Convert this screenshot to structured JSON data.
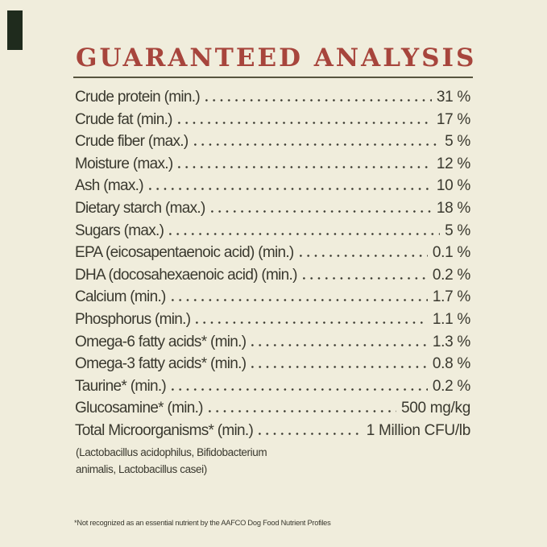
{
  "colors": {
    "background": "#f0eddc",
    "title": "#a7453c",
    "rule": "#57553e",
    "text": "#3a392f",
    "corner_mark": "#1f2b1d"
  },
  "header": {
    "title": "GUARANTEED ANALYSIS"
  },
  "analysis": {
    "rows": [
      {
        "label": "Crude protein (min.)",
        "value": "31 %"
      },
      {
        "label": "Crude fat (min.)",
        "value": "17 %"
      },
      {
        "label": "Crude fiber (max.)",
        "value": "5 %"
      },
      {
        "label": "Moisture (max.)",
        "value": "12 %"
      },
      {
        "label": "Ash (max.)",
        "value": "10 %"
      },
      {
        "label": "Dietary starch (max.)",
        "value": "18 %"
      },
      {
        "label": "Sugars (max.)",
        "value": "5 %"
      },
      {
        "label": "EPA (eicosapentaenoic acid) (min.)",
        "value": "0.1 %"
      },
      {
        "label": "DHA (docosahexaenoic acid) (min.)",
        "value": "0.2 %"
      },
      {
        "label": "Calcium (min.)",
        "value": "1.7 %"
      },
      {
        "label": "Phosphorus (min.)",
        "value": "1.1 %"
      },
      {
        "label": "Omega-6 fatty acids* (min.)",
        "value": "1.3 %"
      },
      {
        "label": "Omega-3 fatty acids* (min.)",
        "value": "0.8 %"
      },
      {
        "label": "Taurine* (min.)",
        "value": "0.2 %"
      },
      {
        "label": "Glucosamine* (min.)",
        "value": "500 mg/kg"
      },
      {
        "label": "Total Microorganisms* (min.)",
        "value": "1 Million CFU/lb"
      }
    ],
    "note_lines": [
      "(Lactobacillus acidophilus, Bifidobacterium",
      "animalis, Lactobacillus casei)"
    ]
  },
  "footnote": "*Not recognized as an essential nutrient by the AAFCO Dog Food Nutrient Profiles"
}
